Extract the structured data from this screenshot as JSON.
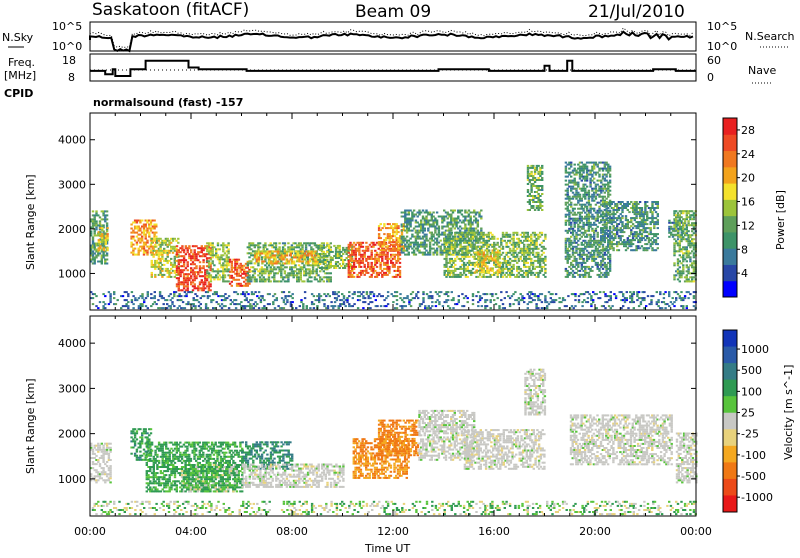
{
  "header": {
    "station": "Saskatoon (fitACF)",
    "beam": "Beam 09",
    "date": "21/Jul/2010"
  },
  "top_strip": {
    "nsky_label": "N.Sky",
    "nsearch_label": "N.Search",
    "left_ticks": [
      "10^5",
      "10^0"
    ],
    "right_ticks": [
      "10^5",
      "10^0"
    ],
    "freq_label_1": "Freq.",
    "freq_label_2": "[MHz]",
    "freq_ticks": [
      "18",
      "8"
    ],
    "nave_ticks": [
      "60",
      "0"
    ],
    "nave_label": "Nave",
    "cpid_label": "CPID",
    "cpid_text": "normalsound (fast) -157",
    "freq_series": [
      [
        0,
        11
      ],
      [
        0.6,
        11
      ],
      [
        0.6,
        9
      ],
      [
        0.9,
        9
      ],
      [
        0.9,
        12
      ],
      [
        1.0,
        12
      ],
      [
        1.0,
        8
      ],
      [
        1.6,
        8
      ],
      [
        1.6,
        12
      ],
      [
        2.2,
        12
      ],
      [
        2.2,
        17
      ],
      [
        3.9,
        17
      ],
      [
        3.9,
        13
      ],
      [
        4.3,
        13
      ],
      [
        4.3,
        12
      ],
      [
        6.2,
        12
      ],
      [
        6.2,
        11
      ],
      [
        13.8,
        11
      ],
      [
        13.8,
        12
      ],
      [
        15.8,
        12
      ],
      [
        15.8,
        11
      ],
      [
        18.0,
        11
      ],
      [
        18.0,
        14
      ],
      [
        18.2,
        14
      ],
      [
        18.2,
        11
      ],
      [
        18.9,
        11
      ],
      [
        18.9,
        17
      ],
      [
        19.1,
        17
      ],
      [
        19.1,
        11
      ],
      [
        22.3,
        11
      ],
      [
        22.3,
        12
      ],
      [
        23.2,
        12
      ],
      [
        23.2,
        11
      ],
      [
        24,
        11
      ]
    ],
    "nave_level": 30
  },
  "colors": {
    "power_scale": [
      "#0000ff",
      "#2847a6",
      "#3a7a9c",
      "#3d9368",
      "#5e9f5a",
      "#9cc43a",
      "#f4e12c",
      "#f3a31c",
      "#f07820",
      "#ee4a24",
      "#e82020"
    ],
    "velocity_scale": [
      "#1234b8",
      "#2a5aa8",
      "#347c86",
      "#2f9a52",
      "#58c43c",
      "#c8c8c4",
      "#e8d27c",
      "#f4a820",
      "#f07814",
      "#ec4a18",
      "#e81818"
    ]
  },
  "chart_data": [
    {
      "type": "heatmap",
      "title": "",
      "xlabel": "",
      "ylabel": "Slant Range [km]",
      "x_ticks": [
        "00:00",
        "04:00",
        "08:00",
        "12:00",
        "16:00",
        "20:00",
        "00:00"
      ],
      "y_ticks": [
        "1000",
        "2000",
        "3000",
        "4000"
      ],
      "xlim": [
        0,
        24
      ],
      "ylim": [
        180,
        4600
      ],
      "colorbar_label": "Power [dB]",
      "colorbar_ticks": [
        "4",
        "8",
        "12",
        "16",
        "20",
        "24",
        "28"
      ],
      "colorbar_range": [
        0,
        30
      ],
      "blobs": [
        {
          "t": [
            0.0,
            0.7
          ],
          "r": [
            1200,
            2400
          ],
          "v": 10
        },
        {
          "t": [
            0.3,
            0.7
          ],
          "r": [
            1500,
            2000
          ],
          "v": 18
        },
        {
          "t": [
            1.6,
            2.6
          ],
          "r": [
            1400,
            2200
          ],
          "v": 22
        },
        {
          "t": [
            2.4,
            3.5
          ],
          "r": [
            900,
            1800
          ],
          "v": 16
        },
        {
          "t": [
            3.4,
            4.8
          ],
          "r": [
            600,
            1600
          ],
          "v": 27
        },
        {
          "t": [
            4.6,
            5.5
          ],
          "r": [
            800,
            1700
          ],
          "v": 14
        },
        {
          "t": [
            5.5,
            6.3
          ],
          "r": [
            700,
            1300
          ],
          "v": 26
        },
        {
          "t": [
            6.2,
            9.5
          ],
          "r": [
            800,
            1700
          ],
          "v": 12
        },
        {
          "t": [
            6.5,
            9.0
          ],
          "r": [
            1200,
            1500
          ],
          "v": 20
        },
        {
          "t": [
            9.0,
            10.4
          ],
          "r": [
            1100,
            1600
          ],
          "v": 13
        },
        {
          "t": [
            10.2,
            12.3
          ],
          "r": [
            900,
            1700
          ],
          "v": 26
        },
        {
          "t": [
            11.4,
            12.4
          ],
          "r": [
            1500,
            2100
          ],
          "v": 22
        },
        {
          "t": [
            12.3,
            15.5
          ],
          "r": [
            1400,
            2400
          ],
          "v": 10
        },
        {
          "t": [
            14.0,
            18.0
          ],
          "r": [
            900,
            1900
          ],
          "v": 13
        },
        {
          "t": [
            15.2,
            16.2
          ],
          "r": [
            1000,
            1500
          ],
          "v": 18
        },
        {
          "t": [
            17.3,
            17.9
          ],
          "r": [
            2400,
            3400
          ],
          "v": 12
        },
        {
          "t": [
            18.8,
            20.6
          ],
          "r": [
            900,
            3500
          ],
          "v": 9
        },
        {
          "t": [
            20.2,
            22.5
          ],
          "r": [
            1500,
            2600
          ],
          "v": 9
        },
        {
          "t": [
            22.9,
            23.4
          ],
          "r": [
            1800,
            2200
          ],
          "v": 8
        },
        {
          "t": [
            23.1,
            24.0
          ],
          "r": [
            800,
            2400
          ],
          "v": 12
        },
        {
          "t": [
            0.0,
            24.0
          ],
          "r": [
            200,
            600
          ],
          "v": 6
        }
      ]
    },
    {
      "type": "heatmap",
      "title": "",
      "xlabel": "Time UT",
      "ylabel": "Slant Range [km]",
      "x_ticks": [
        "00:00",
        "04:00",
        "08:00",
        "12:00",
        "16:00",
        "20:00",
        "00:00"
      ],
      "y_ticks": [
        "1000",
        "2000",
        "3000",
        "4000"
      ],
      "xlim": [
        0,
        24
      ],
      "ylim": [
        180,
        4600
      ],
      "colorbar_label": "Velocity [m s^-1]",
      "colorbar_ticks": [
        "1000",
        "500",
        "100",
        "25",
        "-25",
        "-100",
        "-500",
        "-1000"
      ],
      "blobs": [
        {
          "t": [
            0.0,
            0.8
          ],
          "r": [
            900,
            1800
          ],
          "v": 0
        },
        {
          "t": [
            1.6,
            2.4
          ],
          "r": [
            1400,
            2100
          ],
          "v": 200
        },
        {
          "t": [
            2.2,
            6.0
          ],
          "r": [
            700,
            1800
          ],
          "v": 150
        },
        {
          "t": [
            3.6,
            5.8
          ],
          "r": [
            700,
            1300
          ],
          "v": 80
        },
        {
          "t": [
            6.0,
            8.0
          ],
          "r": [
            1200,
            1800
          ],
          "v": 300
        },
        {
          "t": [
            6.0,
            10.0
          ],
          "r": [
            800,
            1300
          ],
          "v": 0
        },
        {
          "t": [
            10.4,
            12.6
          ],
          "r": [
            1000,
            1900
          ],
          "v": -300
        },
        {
          "t": [
            11.4,
            13.0
          ],
          "r": [
            1500,
            2300
          ],
          "v": -350
        },
        {
          "t": [
            13.0,
            15.2
          ],
          "r": [
            1400,
            2500
          ],
          "v": 0
        },
        {
          "t": [
            14.8,
            18.0
          ],
          "r": [
            1200,
            2100
          ],
          "v": 0
        },
        {
          "t": [
            17.2,
            18.0
          ],
          "r": [
            2400,
            3400
          ],
          "v": 0
        },
        {
          "t": [
            19.0,
            23.0
          ],
          "r": [
            1300,
            2400
          ],
          "v": 0
        },
        {
          "t": [
            23.2,
            24.0
          ],
          "r": [
            900,
            2000
          ],
          "v": 0
        },
        {
          "t": [
            0.0,
            24.0
          ],
          "r": [
            200,
            500
          ],
          "v": 40
        }
      ]
    }
  ]
}
